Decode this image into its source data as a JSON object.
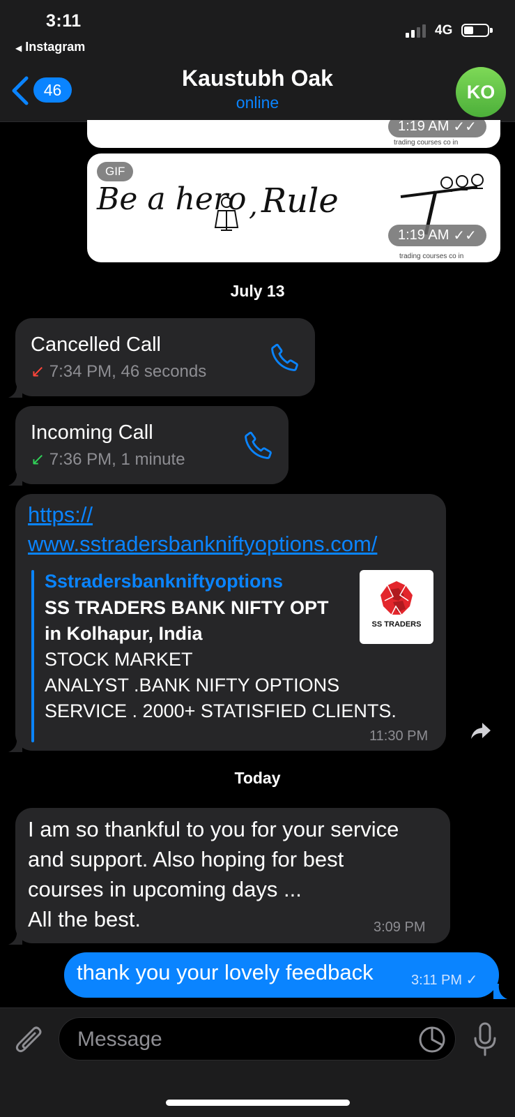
{
  "status": {
    "time": "3:11",
    "back_app": "Instagram",
    "network": "4G"
  },
  "header": {
    "unread_count": "46",
    "contact_name": "Kaustubh Oak",
    "contact_status": "online",
    "avatar_initials": "KO"
  },
  "media": [
    {
      "time": "1:19 AM",
      "watermark": "trading courses co in"
    },
    {
      "badge": "GIF",
      "script_left": "Be a hero",
      "script_mid": "Rule",
      "time": "1:19 AM",
      "watermark": "trading courses co in"
    }
  ],
  "dates": {
    "first": "July 13",
    "second": "Today"
  },
  "calls": [
    {
      "title": "Cancelled Call",
      "meta": "7:34 PM, 46 seconds",
      "arrow": "↙",
      "arrow_color": "#ff453a"
    },
    {
      "title": "Incoming Call",
      "meta": "7:36 PM, 1 minute",
      "arrow": "↙",
      "arrow_color": "#30d158"
    }
  ],
  "link_message": {
    "url_line1": "https://",
    "url_line2": "www.sstradersbankniftyoptions.com/",
    "preview_site": "Sstradersbankniftyoptions",
    "preview_title_line1": "SS TRADERS BANK NIFTY OPT",
    "preview_title_line2": "in Kolhapur, India",
    "preview_desc_line1": "STOCK MARKET",
    "preview_desc_line2": "ANALYST .BANK NIFTY OPTIONS",
    "preview_desc_line3": "SERVICE . 2000+ STATISFIED CLIENTS.",
    "thumb_label": "SS TRADERS",
    "time": "11:30 PM"
  },
  "incoming_message": {
    "lines": [
      "I am so thankful to you for your service",
      "and support. Also hoping for best",
      "courses in upcoming days ...",
      "All the best."
    ],
    "time": "3:09 PM"
  },
  "outgoing_message": {
    "text": "thank you your lovely feedback",
    "time": "3:11 PM"
  },
  "input": {
    "placeholder": "Message"
  },
  "colors": {
    "accent": "#0a84ff",
    "bubble_in": "#262628",
    "avatar": "#5cc24a"
  }
}
